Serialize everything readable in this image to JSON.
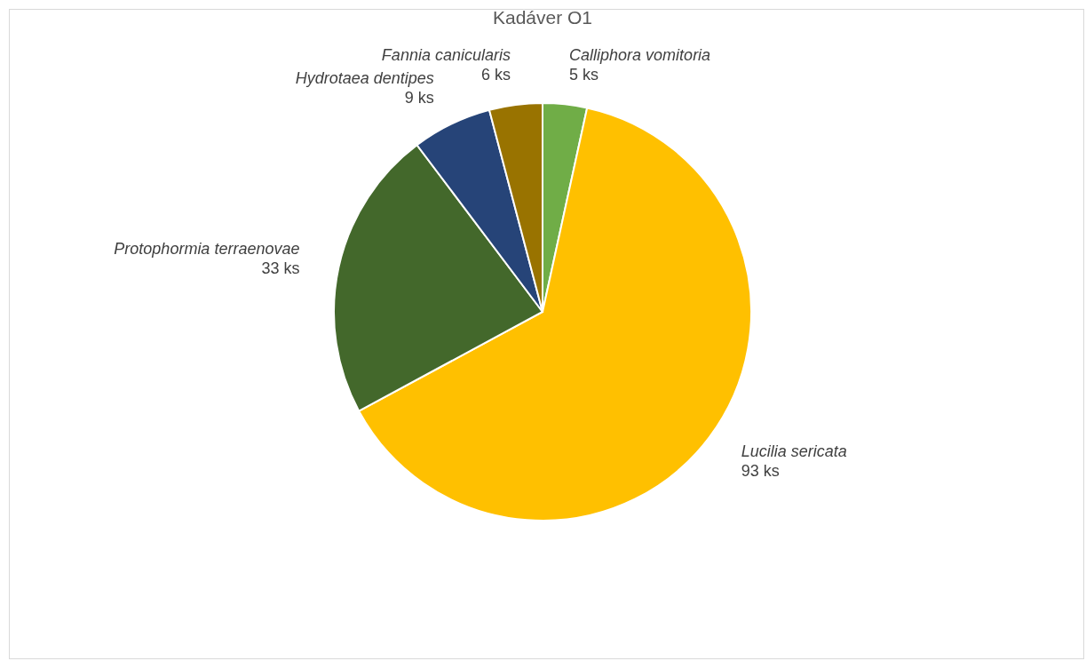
{
  "chart_data": {
    "type": "pie",
    "title": "Kadáver O1",
    "categories": [
      "Calliphora vomitoria",
      "Lucilia sericata",
      "Protophormia terraenovae",
      "Hydrotaea dentipes",
      "Fannia canicularis"
    ],
    "values": [
      5,
      93,
      33,
      9,
      6
    ],
    "value_labels": [
      "5 ks",
      "93 ks",
      "33 ks",
      "9 ks",
      "6 ks"
    ],
    "colors": [
      "#70ad47",
      "#ffc000",
      "#43682b",
      "#264478",
      "#997300"
    ],
    "legend": false
  }
}
